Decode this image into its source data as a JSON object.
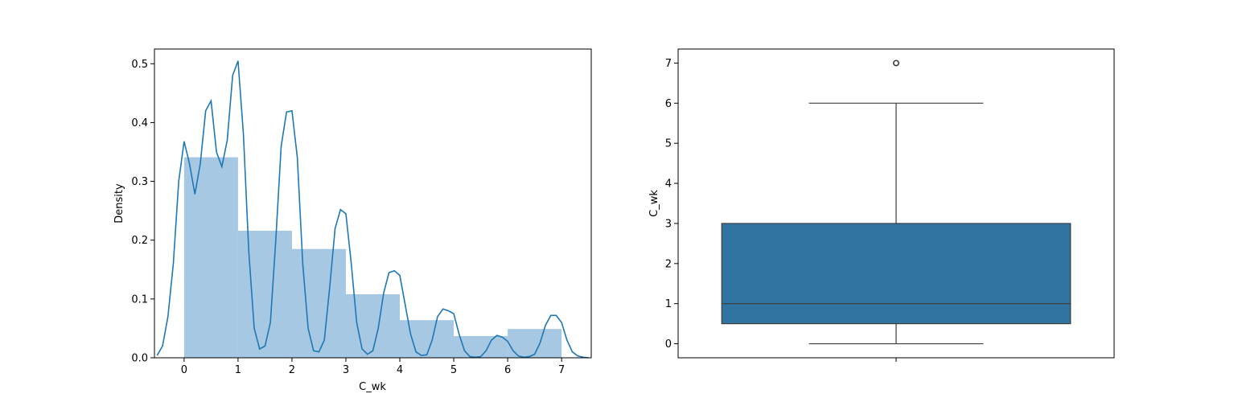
{
  "chart_data": [
    {
      "type": "histogram",
      "xlabel": "C_wk",
      "ylabel": "Density",
      "xlim": [
        -0.55,
        7.55
      ],
      "ylim": [
        0,
        0.525
      ],
      "xticks": [
        "0",
        "1",
        "2",
        "3",
        "4",
        "5",
        "6",
        "7"
      ],
      "yticks": [
        "0.0",
        "0.1",
        "0.2",
        "0.3",
        "0.4",
        "0.5"
      ],
      "bars": [
        {
          "x0": 0,
          "x1": 1,
          "value": 0.341
        },
        {
          "x0": 1,
          "x1": 2,
          "value": 0.216
        },
        {
          "x0": 2,
          "x1": 3,
          "value": 0.185
        },
        {
          "x0": 3,
          "x1": 4,
          "value": 0.108
        },
        {
          "x0": 4,
          "x1": 5,
          "value": 0.064
        },
        {
          "x0": 5,
          "x1": 6,
          "value": 0.037
        },
        {
          "x0": 6,
          "x1": 7,
          "value": 0.049
        }
      ],
      "bar_color": "#a6c8e3",
      "kde": {
        "color": "#1f77b4",
        "x": [
          -0.5,
          -0.4,
          -0.3,
          -0.2,
          -0.1,
          0.0,
          0.1,
          0.2,
          0.3,
          0.4,
          0.5,
          0.6,
          0.7,
          0.8,
          0.9,
          1.0,
          1.1,
          1.2,
          1.3,
          1.4,
          1.5,
          1.6,
          1.7,
          1.8,
          1.9,
          2.0,
          2.1,
          2.2,
          2.3,
          2.4,
          2.5,
          2.6,
          2.7,
          2.8,
          2.9,
          3.0,
          3.1,
          3.2,
          3.3,
          3.4,
          3.5,
          3.6,
          3.7,
          3.8,
          3.9,
          4.0,
          4.1,
          4.2,
          4.3,
          4.4,
          4.5,
          4.6,
          4.7,
          4.8,
          4.9,
          5.0,
          5.1,
          5.2,
          5.3,
          5.4,
          5.5,
          5.6,
          5.7,
          5.8,
          5.9,
          6.0,
          6.1,
          6.2,
          6.3,
          6.4,
          6.5,
          6.6,
          6.7,
          6.8,
          6.9,
          7.0,
          7.1,
          7.2,
          7.3,
          7.4,
          7.5
        ],
        "y": [
          0.004,
          0.02,
          0.07,
          0.16,
          0.3,
          0.368,
          0.33,
          0.278,
          0.33,
          0.42,
          0.437,
          0.35,
          0.325,
          0.37,
          0.48,
          0.505,
          0.38,
          0.18,
          0.05,
          0.015,
          0.02,
          0.06,
          0.2,
          0.36,
          0.418,
          0.42,
          0.34,
          0.16,
          0.05,
          0.012,
          0.01,
          0.03,
          0.12,
          0.22,
          0.252,
          0.245,
          0.16,
          0.06,
          0.015,
          0.006,
          0.012,
          0.05,
          0.11,
          0.145,
          0.148,
          0.14,
          0.09,
          0.04,
          0.01,
          0.004,
          0.005,
          0.03,
          0.07,
          0.083,
          0.08,
          0.075,
          0.04,
          0.012,
          0.002,
          0.001,
          0.002,
          0.012,
          0.03,
          0.038,
          0.035,
          0.028,
          0.012,
          0.003,
          0.001,
          0.002,
          0.006,
          0.025,
          0.055,
          0.072,
          0.072,
          0.06,
          0.03,
          0.01,
          0.003,
          0.001,
          0.0
        ]
      }
    },
    {
      "type": "box",
      "ylabel": "C_wk",
      "ylim": [
        -0.35,
        7.35
      ],
      "yticks": [
        "0",
        "1",
        "2",
        "3",
        "4",
        "5",
        "6",
        "7"
      ],
      "color": "#3274a1",
      "q1": 0.5,
      "median": 1,
      "q3": 3,
      "whisker_low": 0,
      "whisker_high": 6,
      "outliers": [
        7
      ]
    }
  ]
}
